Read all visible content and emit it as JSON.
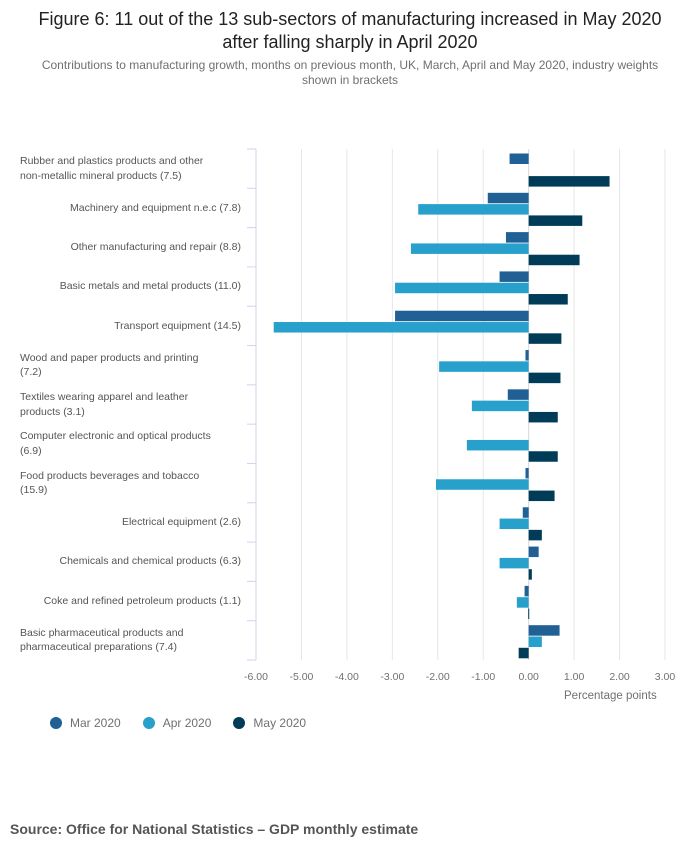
{
  "header": {
    "title": "Figure 6: 11 out of the 13 sub-sectors of manufacturing increased in May 2020 after falling sharply in April 2020",
    "subtitle": "Contributions to manufacturing growth, months on previous month, UK, March, April and May 2020, industry weights shown in brackets"
  },
  "source": "Source: Office for National Statistics – GDP monthly estimate",
  "chart_data": {
    "type": "bar",
    "orientation": "horizontal",
    "title": "Figure 6: 11 out of the 13 sub-sectors of manufacturing increased in May 2020 after falling sharply in April 2020",
    "xlabel": "Percentage points",
    "ylabel": "",
    "xlim": [
      -6,
      3
    ],
    "xticks": [
      "-6.00",
      "-5.00",
      "-4.00",
      "-3.00",
      "-2.00",
      "-1.00",
      "0.00",
      "1.00",
      "2.00",
      "3.00"
    ],
    "grid": true,
    "legend_position": "bottom-left",
    "categories": [
      "Rubber and plastics products and other non-metallic mineral products (7.5)",
      "Machinery and equipment n.e.c (7.8)",
      "Other manufacturing and repair (8.8)",
      "Basic metals and metal products (11.0)",
      "Transport equipment (14.5)",
      "Wood and paper products and printing (7.2)",
      "Textiles wearing apparel and leather products (3.1)",
      "Computer electronic and optical products (6.9)",
      "Food products beverages and tobacco (15.9)",
      "Electrical equipment (2.6)",
      "Chemicals and chemical products (6.3)",
      "Coke and refined petroleum products (1.1)",
      "Basic pharmaceutical products and pharmaceutical preparations (7.4)"
    ],
    "category_labels": [
      {
        "lines": [
          "Rubber and plastics products and other",
          "non-metallic mineral products (7.5)"
        ],
        "align": "left"
      },
      {
        "lines": [
          "Machinery and equipment n.e.c (7.8)"
        ],
        "align": "right"
      },
      {
        "lines": [
          "Other manufacturing and repair (8.8)"
        ],
        "align": "right"
      },
      {
        "lines": [
          "Basic metals and metal products (11.0)"
        ],
        "align": "right"
      },
      {
        "lines": [
          "Transport equipment (14.5)"
        ],
        "align": "right"
      },
      {
        "lines": [
          "Wood and paper products and printing",
          "(7.2)"
        ],
        "align": "left"
      },
      {
        "lines": [
          "Textiles wearing apparel and leather",
          "products (3.1)"
        ],
        "align": "left"
      },
      {
        "lines": [
          "Computer electronic and optical products",
          "(6.9)"
        ],
        "align": "left"
      },
      {
        "lines": [
          "Food products beverages and tobacco",
          "(15.9)"
        ],
        "align": "left"
      },
      {
        "lines": [
          "Electrical equipment (2.6)"
        ],
        "align": "right"
      },
      {
        "lines": [
          "Chemicals and chemical products (6.3)"
        ],
        "align": "right"
      },
      {
        "lines": [
          "Coke and refined petroleum products (1.1)"
        ],
        "align": "right"
      },
      {
        "lines": [
          "Basic pharmaceutical products and",
          "pharmaceutical preparations (7.4)"
        ],
        "align": "left"
      }
    ],
    "series": [
      {
        "name": "Mar 2020",
        "color": "#206095",
        "values": [
          -0.42,
          -0.9,
          -0.5,
          -0.64,
          -2.94,
          -0.07,
          -0.46,
          0.0,
          -0.07,
          -0.13,
          0.22,
          -0.09,
          0.68
        ]
      },
      {
        "name": "Apr 2020",
        "color": "#27a0cc",
        "values": [
          0.0,
          -2.43,
          -2.59,
          -2.94,
          -5.61,
          -1.97,
          -1.25,
          -1.36,
          -2.04,
          -0.64,
          -0.64,
          -0.26,
          0.29
        ]
      },
      {
        "name": "May 2020",
        "color": "#003c57",
        "values": [
          1.78,
          1.18,
          1.12,
          0.86,
          0.72,
          0.7,
          0.64,
          0.64,
          0.57,
          0.29,
          0.07,
          -0.01,
          -0.22
        ]
      }
    ]
  }
}
